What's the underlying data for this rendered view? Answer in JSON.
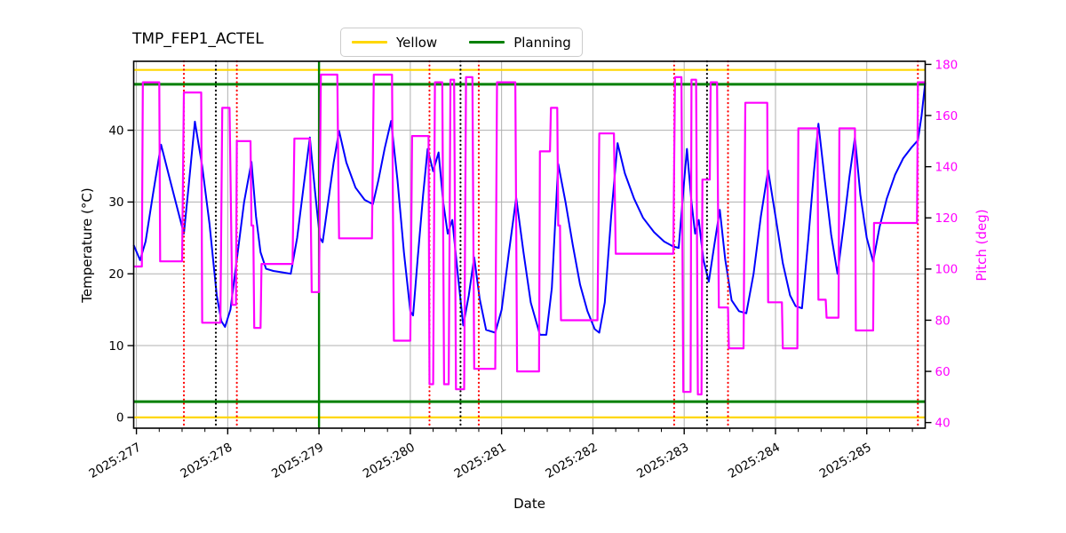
{
  "chart_data": {
    "type": "line",
    "title": "TMP_FEP1_ACTEL",
    "xlabel": "Date",
    "ylabel_left": "Temperature (°C)",
    "ylabel_right": "Pitch (deg)",
    "legend": [
      {
        "label": "Yellow",
        "color": "#ffd700"
      },
      {
        "label": "Planning",
        "color": "#008000"
      }
    ],
    "grid": true,
    "grid_color": "#b0b0b0",
    "xlim": [
      276.97,
      285.64
    ],
    "ylim_left": [
      -1.5,
      49.6
    ],
    "ylim_right": [
      37.8,
      181.2
    ],
    "x_ticks": [
      {
        "day": 277,
        "label": "2025:277"
      },
      {
        "day": 278,
        "label": "2025:278"
      },
      {
        "day": 279,
        "label": "2025:279"
      },
      {
        "day": 280,
        "label": "2025:280"
      },
      {
        "day": 281,
        "label": "2025:281"
      },
      {
        "day": 282,
        "label": "2025:282"
      },
      {
        "day": 283,
        "label": "2025:283"
      },
      {
        "day": 284,
        "label": "2025:284"
      },
      {
        "day": 285,
        "label": "2025:285"
      }
    ],
    "minor_tick_step_days": 0.25,
    "yticks_left": [
      0,
      10,
      20,
      30,
      40
    ],
    "yticks_right": [
      40,
      60,
      80,
      100,
      120,
      140,
      160,
      180
    ],
    "limit_lines": {
      "yellow_high": 48.4,
      "yellow_low": 0.0,
      "planning_high": 46.4,
      "planning_low": 2.2
    },
    "vertical_markers": {
      "red_dotted_days": [
        277.52,
        278.1,
        280.21,
        280.75,
        282.89,
        283.48,
        285.56
      ],
      "black_dotted_days": [
        277.87,
        280.55,
        283.25
      ],
      "green_solid_day": 279.0
    },
    "colors": {
      "temperature": "#0000ff",
      "pitch": "#ff00ff",
      "yellow_limit": "#ffd700",
      "planning_limit": "#008000",
      "red_marker": "#ff0000",
      "black_marker": "#000000"
    },
    "series": [
      {
        "name": "temperature",
        "axis": "left",
        "points": [
          [
            276.97,
            24.0
          ],
          [
            277.04,
            21.9
          ],
          [
            277.1,
            24.5
          ],
          [
            277.18,
            31.0
          ],
          [
            277.27,
            38.0
          ],
          [
            277.38,
            32.5
          ],
          [
            277.46,
            28.5
          ],
          [
            277.52,
            25.6
          ],
          [
            277.57,
            32.0
          ],
          [
            277.64,
            41.2
          ],
          [
            277.72,
            35.0
          ],
          [
            277.8,
            27.0
          ],
          [
            277.88,
            17.0
          ],
          [
            277.93,
            13.4
          ],
          [
            277.97,
            12.6
          ],
          [
            278.03,
            15.0
          ],
          [
            278.1,
            22.0
          ],
          [
            278.18,
            30.0
          ],
          [
            278.26,
            35.6
          ],
          [
            278.31,
            28.0
          ],
          [
            278.36,
            23.0
          ],
          [
            278.42,
            20.7
          ],
          [
            278.5,
            20.4
          ],
          [
            278.6,
            20.2
          ],
          [
            278.69,
            20.0
          ],
          [
            278.76,
            25.0
          ],
          [
            278.83,
            32.0
          ],
          [
            278.9,
            39.0
          ],
          [
            278.96,
            31.0
          ],
          [
            279.01,
            25.0
          ],
          [
            279.04,
            24.4
          ],
          [
            279.1,
            30.0
          ],
          [
            279.16,
            35.5
          ],
          [
            279.22,
            39.9
          ],
          [
            279.3,
            35.5
          ],
          [
            279.4,
            32.0
          ],
          [
            279.5,
            30.3
          ],
          [
            279.59,
            29.7
          ],
          [
            279.65,
            33.0
          ],
          [
            279.72,
            37.5
          ],
          [
            279.79,
            41.3
          ],
          [
            279.86,
            33.0
          ],
          [
            279.93,
            23.0
          ],
          [
            280.0,
            14.8
          ],
          [
            280.03,
            14.2
          ],
          [
            280.08,
            22.0
          ],
          [
            280.14,
            31.0
          ],
          [
            280.19,
            37.4
          ],
          [
            280.25,
            34.3
          ],
          [
            280.31,
            36.9
          ],
          [
            280.36,
            30.0
          ],
          [
            280.41,
            25.6
          ],
          [
            280.46,
            27.5
          ],
          [
            280.52,
            20.0
          ],
          [
            280.58,
            12.8
          ],
          [
            280.64,
            17.0
          ],
          [
            280.7,
            22.3
          ],
          [
            280.76,
            16.5
          ],
          [
            280.83,
            12.2
          ],
          [
            280.93,
            11.8
          ],
          [
            281.0,
            15.0
          ],
          [
            281.08,
            23.0
          ],
          [
            281.16,
            30.6
          ],
          [
            281.24,
            23.0
          ],
          [
            281.32,
            16.0
          ],
          [
            281.42,
            11.5
          ],
          [
            281.49,
            11.5
          ],
          [
            281.55,
            18.0
          ],
          [
            281.62,
            35.3
          ],
          [
            281.7,
            30.0
          ],
          [
            281.78,
            24.0
          ],
          [
            281.86,
            18.5
          ],
          [
            281.94,
            14.8
          ],
          [
            282.02,
            12.3
          ],
          [
            282.07,
            11.8
          ],
          [
            282.13,
            16.0
          ],
          [
            282.2,
            28.0
          ],
          [
            282.27,
            38.2
          ],
          [
            282.35,
            34.0
          ],
          [
            282.45,
            30.5
          ],
          [
            282.55,
            27.8
          ],
          [
            282.67,
            25.8
          ],
          [
            282.78,
            24.5
          ],
          [
            282.88,
            23.8
          ],
          [
            282.94,
            23.6
          ],
          [
            283.0,
            33.0
          ],
          [
            283.03,
            37.4
          ],
          [
            283.08,
            30.0
          ],
          [
            283.12,
            25.6
          ],
          [
            283.16,
            27.5
          ],
          [
            283.21,
            22.0
          ],
          [
            283.27,
            18.9
          ],
          [
            283.33,
            24.0
          ],
          [
            283.39,
            28.9
          ],
          [
            283.45,
            22.0
          ],
          [
            283.52,
            16.3
          ],
          [
            283.6,
            14.8
          ],
          [
            283.68,
            14.5
          ],
          [
            283.76,
            20.0
          ],
          [
            283.84,
            28.0
          ],
          [
            283.92,
            34.4
          ],
          [
            284.0,
            28.0
          ],
          [
            284.08,
            21.5
          ],
          [
            284.16,
            17.0
          ],
          [
            284.22,
            15.5
          ],
          [
            284.29,
            15.2
          ],
          [
            284.36,
            25.0
          ],
          [
            284.42,
            34.0
          ],
          [
            284.47,
            40.9
          ],
          [
            284.54,
            33.0
          ],
          [
            284.61,
            25.5
          ],
          [
            284.68,
            20.0
          ],
          [
            284.75,
            27.0
          ],
          [
            284.81,
            33.5
          ],
          [
            284.87,
            39.0
          ],
          [
            284.93,
            31.0
          ],
          [
            285.0,
            25.0
          ],
          [
            285.07,
            21.7
          ],
          [
            285.14,
            26.5
          ],
          [
            285.22,
            30.5
          ],
          [
            285.31,
            33.8
          ],
          [
            285.4,
            36.1
          ],
          [
            285.49,
            37.6
          ],
          [
            285.56,
            38.6
          ],
          [
            285.6,
            42.0
          ],
          [
            285.64,
            46.6
          ]
        ]
      },
      {
        "name": "pitch",
        "axis": "right",
        "points": [
          [
            276.97,
            101
          ],
          [
            277.06,
            101
          ],
          [
            277.07,
            173
          ],
          [
            277.25,
            173
          ],
          [
            277.26,
            103
          ],
          [
            277.5,
            103
          ],
          [
            277.52,
            169
          ],
          [
            277.71,
            169
          ],
          [
            277.72,
            79
          ],
          [
            277.92,
            79
          ],
          [
            277.94,
            163
          ],
          [
            278.02,
            163
          ],
          [
            278.05,
            86
          ],
          [
            278.09,
            86
          ],
          [
            278.1,
            150
          ],
          [
            278.25,
            150
          ],
          [
            278.26,
            117
          ],
          [
            278.28,
            117
          ],
          [
            278.29,
            77
          ],
          [
            278.36,
            77
          ],
          [
            278.37,
            102
          ],
          [
            278.71,
            102
          ],
          [
            278.73,
            151
          ],
          [
            278.9,
            151
          ],
          [
            278.92,
            91
          ],
          [
            279.0,
            91
          ],
          [
            279.02,
            176
          ],
          [
            279.2,
            176
          ],
          [
            279.22,
            112
          ],
          [
            279.58,
            112
          ],
          [
            279.6,
            176
          ],
          [
            279.8,
            176
          ],
          [
            279.82,
            72
          ],
          [
            280.0,
            72
          ],
          [
            280.02,
            152
          ],
          [
            280.2,
            152
          ],
          [
            280.21,
            55
          ],
          [
            280.25,
            55
          ],
          [
            280.27,
            173
          ],
          [
            280.35,
            173
          ],
          [
            280.37,
            55
          ],
          [
            280.42,
            55
          ],
          [
            280.44,
            174
          ],
          [
            280.48,
            174
          ],
          [
            280.5,
            53
          ],
          [
            280.59,
            53
          ],
          [
            280.61,
            175
          ],
          [
            280.68,
            175
          ],
          [
            280.7,
            61
          ],
          [
            280.93,
            61
          ],
          [
            280.95,
            173
          ],
          [
            281.15,
            173
          ],
          [
            281.17,
            60
          ],
          [
            281.41,
            60
          ],
          [
            281.42,
            146
          ],
          [
            281.53,
            146
          ],
          [
            281.54,
            163
          ],
          [
            281.61,
            163
          ],
          [
            281.62,
            117
          ],
          [
            281.64,
            117
          ],
          [
            281.65,
            80
          ],
          [
            282.05,
            80
          ],
          [
            282.07,
            153
          ],
          [
            282.23,
            153
          ],
          [
            282.25,
            106
          ],
          [
            282.88,
            106
          ],
          [
            282.9,
            175
          ],
          [
            282.97,
            175
          ],
          [
            282.99,
            52
          ],
          [
            283.07,
            52
          ],
          [
            283.08,
            174
          ],
          [
            283.13,
            174
          ],
          [
            283.15,
            51
          ],
          [
            283.19,
            51
          ],
          [
            283.2,
            135
          ],
          [
            283.28,
            135
          ],
          [
            283.29,
            173
          ],
          [
            283.36,
            173
          ],
          [
            283.38,
            85
          ],
          [
            283.48,
            85
          ],
          [
            283.49,
            69
          ],
          [
            283.65,
            69
          ],
          [
            283.67,
            165
          ],
          [
            283.91,
            165
          ],
          [
            283.92,
            87
          ],
          [
            284.07,
            87
          ],
          [
            284.08,
            69
          ],
          [
            284.24,
            69
          ],
          [
            284.25,
            155
          ],
          [
            284.46,
            155
          ],
          [
            284.47,
            88
          ],
          [
            284.55,
            88
          ],
          [
            284.56,
            81
          ],
          [
            284.69,
            81
          ],
          [
            284.7,
            155
          ],
          [
            284.87,
            155
          ],
          [
            284.88,
            76
          ],
          [
            285.07,
            76
          ],
          [
            285.08,
            118
          ],
          [
            285.55,
            118
          ],
          [
            285.56,
            173
          ],
          [
            285.64,
            173
          ]
        ]
      }
    ]
  }
}
